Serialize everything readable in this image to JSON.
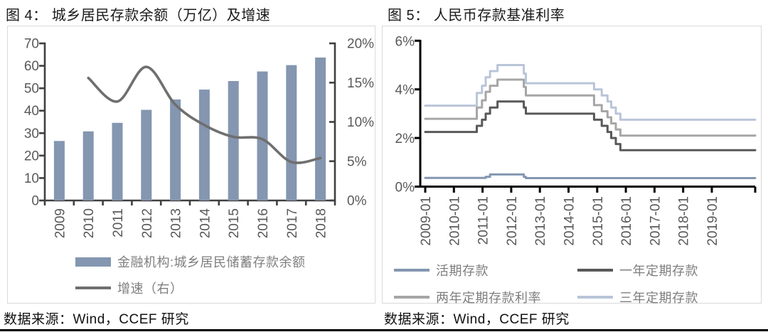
{
  "figure4": {
    "title": "图 4： 城乡居民存款余额（万亿）及增速",
    "source": "数据来源：Wind，CCEF 研究",
    "legend": [
      {
        "label": "金融机构:城乡居民储蓄存款余额",
        "type": "bar"
      },
      {
        "label": "增速（右）",
        "type": "line"
      }
    ]
  },
  "figure5": {
    "title": "图 5： 人民币存款基准利率",
    "source": "数据来源：Wind，CCEF 研究",
    "legend": [
      {
        "label": "活期存款",
        "type": "line"
      },
      {
        "label": "一年定期存款",
        "type": "line"
      },
      {
        "label": "两年定期存款利率",
        "type": "line"
      },
      {
        "label": "三年定期存款",
        "type": "line"
      }
    ]
  },
  "chart_data": [
    {
      "type": "bar",
      "title": "图 4： 城乡居民存款余额（万亿）及增速",
      "categories": [
        "2009",
        "2010",
        "2011",
        "2012",
        "2013",
        "2014",
        "2015",
        "2016",
        "2017",
        "2018"
      ],
      "series": [
        {
          "name": "金融机构:城乡居民储蓄存款余额",
          "type": "bar",
          "axis": "left",
          "color": "#8496B0",
          "values": [
            26.5,
            30.8,
            34.6,
            40.4,
            45.0,
            49.4,
            53.2,
            57.5,
            60.3,
            63.7
          ]
        },
        {
          "name": "增速（右）",
          "type": "line",
          "axis": "right",
          "color": "#6F6F6F",
          "values": [
            null,
            15.6,
            12.6,
            17.0,
            12.2,
            9.6,
            8.1,
            7.8,
            4.9,
            5.4
          ]
        }
      ],
      "left_axis": {
        "min": 0,
        "max": 70,
        "step": 10,
        "tick_labels": [
          "0",
          "10",
          "20",
          "30",
          "40",
          "50",
          "60",
          "70"
        ]
      },
      "right_axis": {
        "min": 0,
        "max": 20,
        "step": 5,
        "tick_labels": [
          "0%",
          "5%",
          "10%",
          "15%",
          "20%"
        ]
      },
      "grid": false,
      "legend_position": "bottom"
    },
    {
      "type": "line",
      "title": "图 5： 人民币存款基准利率",
      "x_tick_labels": [
        "2009-01",
        "2010-01",
        "2011-01",
        "2012-01",
        "2013-01",
        "2014-01",
        "2015-01",
        "2016-01",
        "2017-01",
        "2018-01",
        "2019-01"
      ],
      "x_range_years": [
        2009.0,
        2020.5
      ],
      "y_axis": {
        "min": 0,
        "max": 6,
        "step": 2,
        "tick_labels": [
          "0%",
          "2%",
          "4%",
          "6%"
        ]
      },
      "grid": false,
      "legend_position": "bottom",
      "series": [
        {
          "name": "活期存款",
          "color": "#8496B0",
          "line_style": "step",
          "step_points": [
            [
              2009.0,
              0.36
            ],
            [
              2011.11,
              0.4
            ],
            [
              2011.26,
              0.5
            ],
            [
              2012.44,
              0.4
            ],
            [
              2012.51,
              0.35
            ]
          ]
        },
        {
          "name": "一年定期存款",
          "color": "#595959",
          "line_style": "step",
          "step_points": [
            [
              2009.0,
              2.25
            ],
            [
              2010.8,
              2.5
            ],
            [
              2010.98,
              2.75
            ],
            [
              2011.11,
              3.0
            ],
            [
              2011.26,
              3.25
            ],
            [
              2011.52,
              3.5
            ],
            [
              2012.44,
              3.25
            ],
            [
              2012.51,
              3.0
            ],
            [
              2014.89,
              2.75
            ],
            [
              2015.16,
              2.5
            ],
            [
              2015.36,
              2.25
            ],
            [
              2015.49,
              2.0
            ],
            [
              2015.65,
              1.75
            ],
            [
              2015.81,
              1.5
            ]
          ]
        },
        {
          "name": "两年定期存款利率",
          "color": "#A6A6A6",
          "line_style": "step",
          "step_points": [
            [
              2009.0,
              2.79
            ],
            [
              2010.8,
              3.25
            ],
            [
              2010.98,
              3.55
            ],
            [
              2011.11,
              3.9
            ],
            [
              2011.26,
              4.15
            ],
            [
              2011.52,
              4.4
            ],
            [
              2012.44,
              4.1
            ],
            [
              2012.51,
              3.75
            ],
            [
              2014.89,
              3.35
            ],
            [
              2015.16,
              3.1
            ],
            [
              2015.36,
              2.85
            ],
            [
              2015.49,
              2.6
            ],
            [
              2015.65,
              2.35
            ],
            [
              2015.81,
              2.1
            ]
          ]
        },
        {
          "name": "三年定期存款",
          "color": "#B9C5D8",
          "line_style": "step",
          "step_points": [
            [
              2009.0,
              3.33
            ],
            [
              2010.8,
              3.85
            ],
            [
              2010.98,
              4.15
            ],
            [
              2011.11,
              4.5
            ],
            [
              2011.26,
              4.75
            ],
            [
              2011.52,
              5.0
            ],
            [
              2012.44,
              4.65
            ],
            [
              2012.51,
              4.25
            ],
            [
              2014.89,
              4.0
            ],
            [
              2015.16,
              3.75
            ],
            [
              2015.36,
              3.5
            ],
            [
              2015.49,
              3.25
            ],
            [
              2015.65,
              3.0
            ],
            [
              2015.81,
              2.75
            ]
          ]
        }
      ]
    }
  ],
  "style": {
    "axis_dark": "#404040",
    "axis_black": "#000000",
    "tick_text": "#595959",
    "legend_text": "#7f7f7f",
    "box_border": "#d9d9d9"
  }
}
